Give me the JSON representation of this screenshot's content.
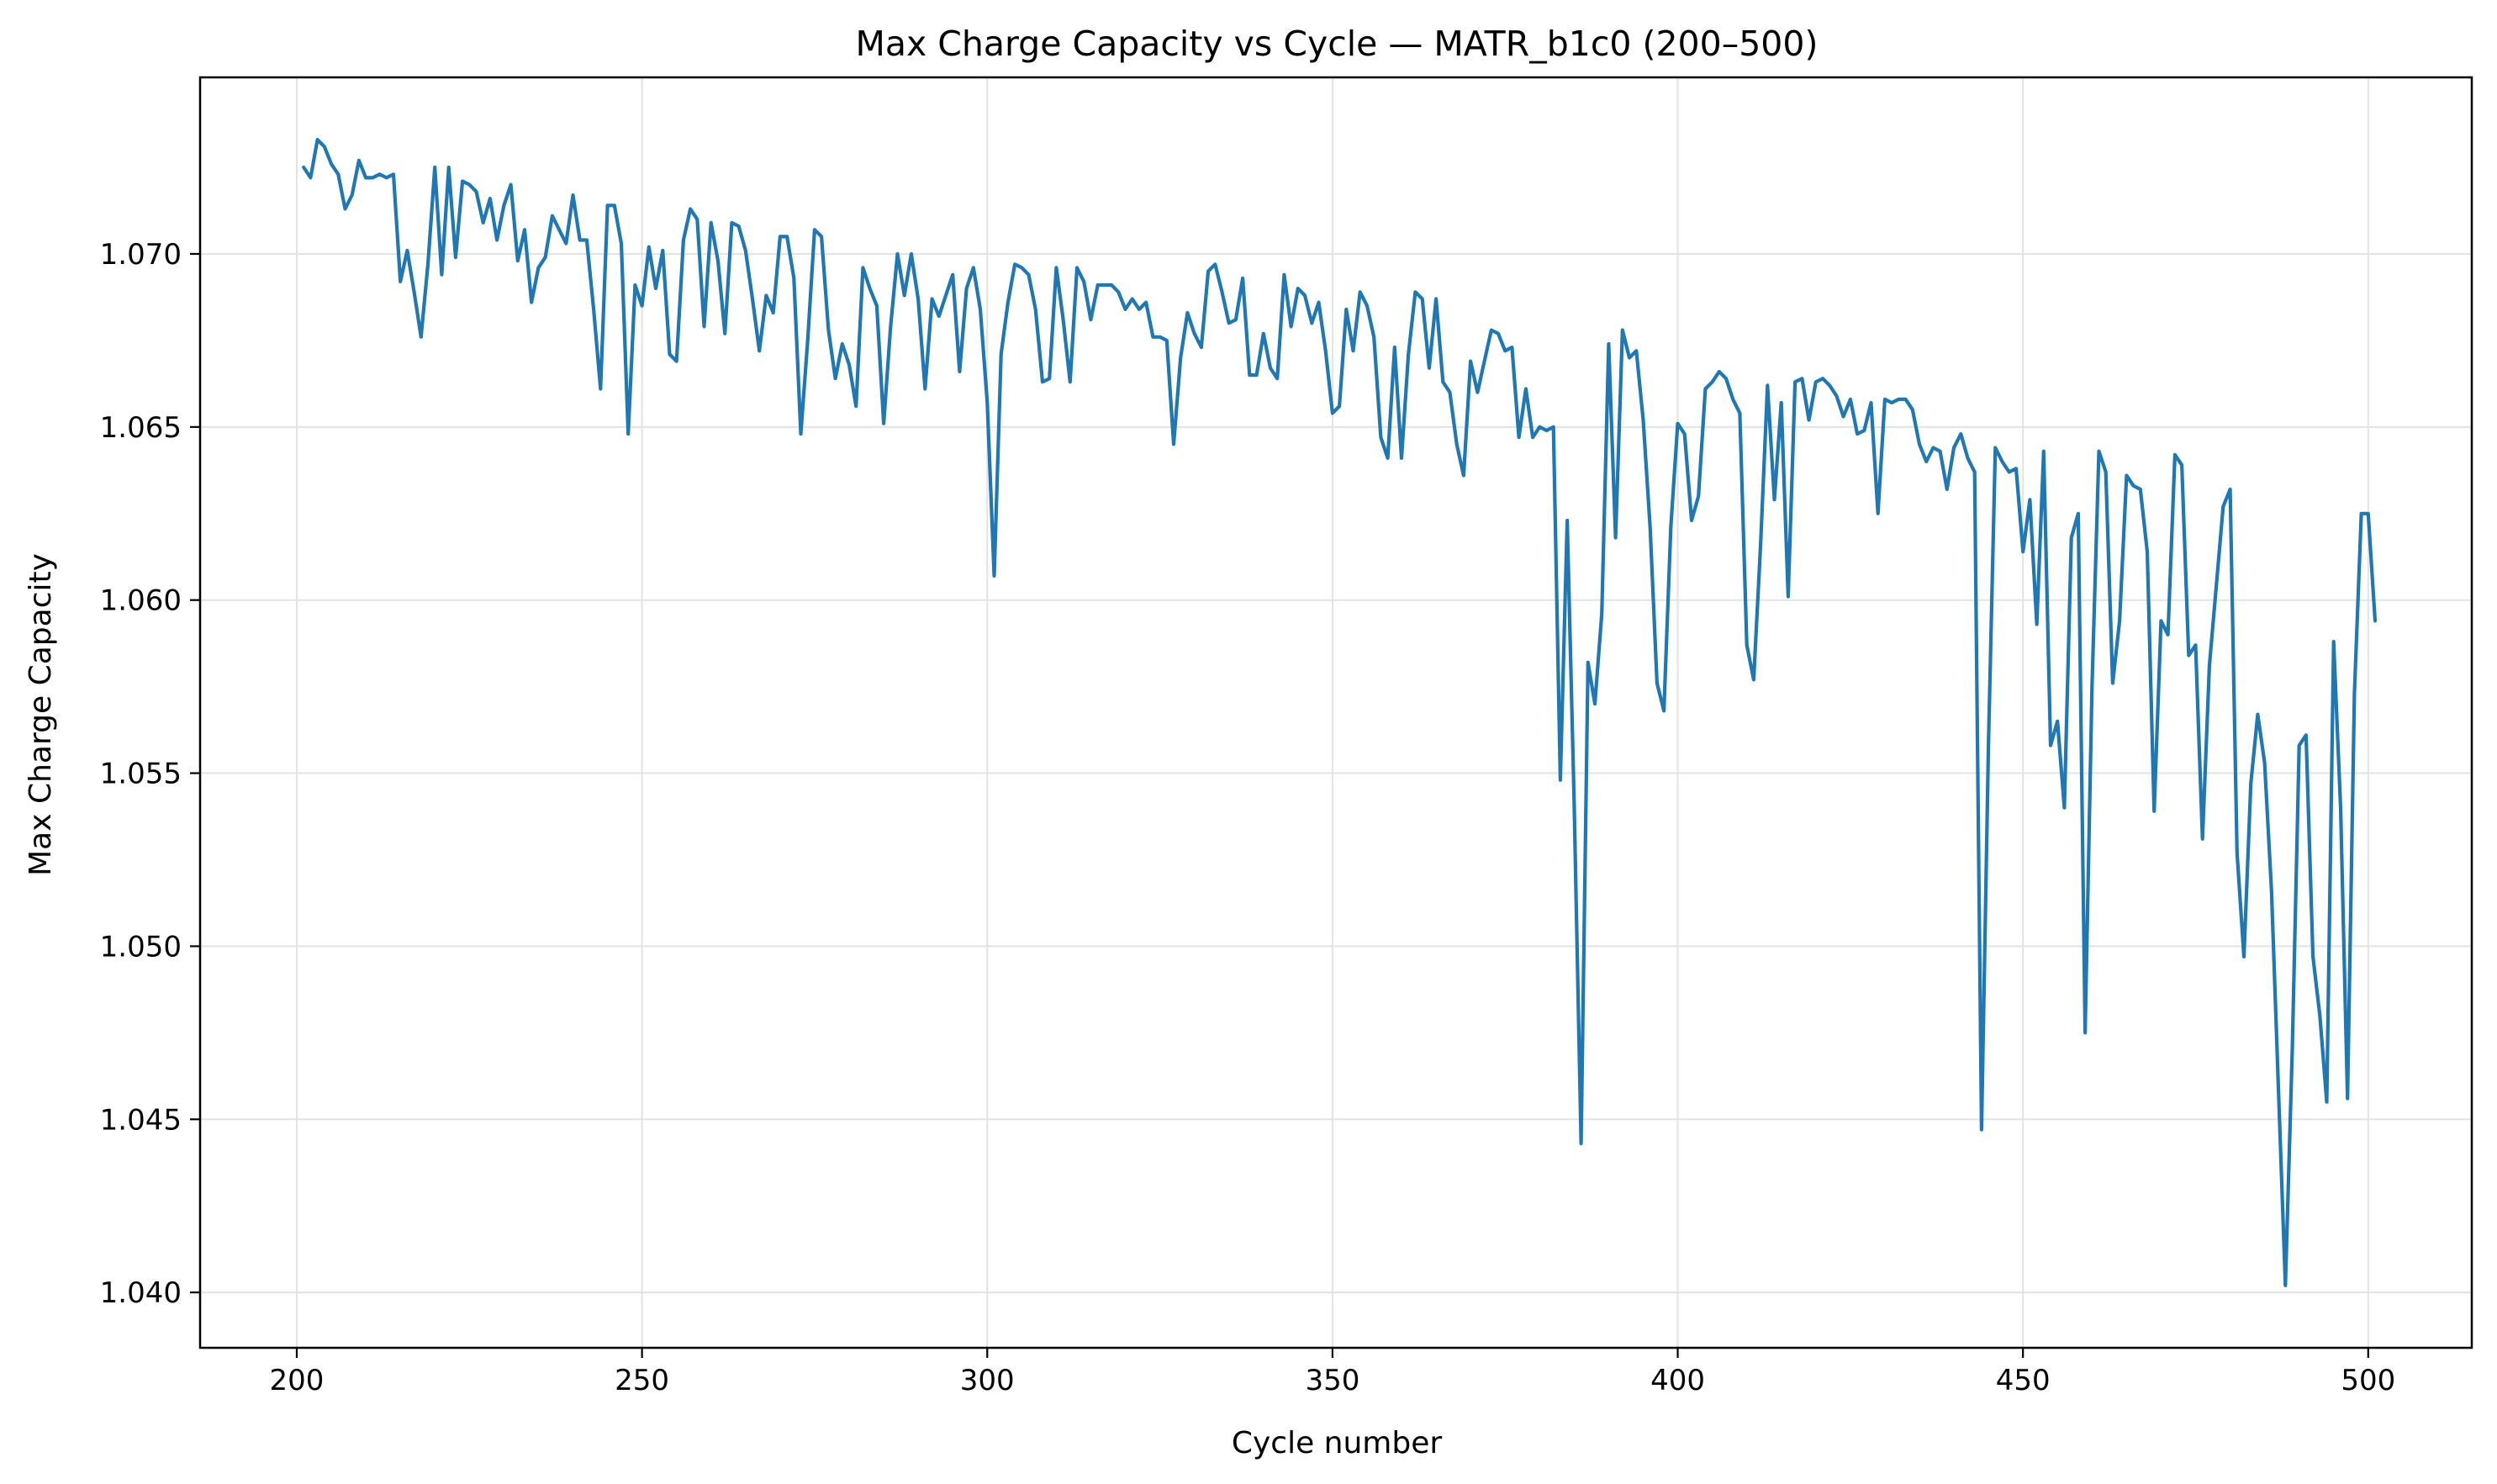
{
  "chart_data": {
    "type": "line",
    "title": "Max Charge Capacity vs Cycle — MATR_b1c0 (200–500)",
    "xlabel": "Cycle number",
    "ylabel": "Max Charge Capacity",
    "xlim": [
      186,
      515
    ],
    "ylim": [
      1.0384,
      1.0751
    ],
    "xticks": [
      200,
      250,
      300,
      350,
      400,
      450,
      500
    ],
    "xtick_labels": [
      "200",
      "250",
      "300",
      "350",
      "400",
      "450",
      "500"
    ],
    "yticks": [
      1.04,
      1.045,
      1.05,
      1.055,
      1.06,
      1.065,
      1.07
    ],
    "ytick_labels": [
      "1.040",
      "1.045",
      "1.050",
      "1.055",
      "1.060",
      "1.065",
      "1.070"
    ],
    "grid": true,
    "legend": "none",
    "line_color": "#1f77b4",
    "series": [
      {
        "x_start": 201,
        "x_step": 1,
        "values": [
          1.0725,
          1.0722,
          1.0733,
          1.0731,
          1.0726,
          1.0723,
          1.0713,
          1.0717,
          1.0727,
          1.0722,
          1.0722,
          1.0723,
          1.0722,
          1.0723,
          1.0692,
          1.0701,
          1.0689,
          1.0676,
          1.0697,
          1.0725,
          1.0694,
          1.0725,
          1.0699,
          1.0721,
          1.072,
          1.0718,
          1.0709,
          1.0716,
          1.0704,
          1.0714,
          1.072,
          1.0698,
          1.0707,
          1.0686,
          1.0696,
          1.0699,
          1.0711,
          1.0707,
          1.0703,
          1.0717,
          1.0704,
          1.0704,
          1.0684,
          1.0661,
          1.0714,
          1.0714,
          1.0703,
          1.0648,
          1.0691,
          1.0685,
          1.0702,
          1.069,
          1.0701,
          1.0671,
          1.0669,
          1.0704,
          1.0713,
          1.071,
          1.0679,
          1.0709,
          1.0698,
          1.0677,
          1.0709,
          1.0708,
          1.0701,
          1.0687,
          1.0672,
          1.0688,
          1.0683,
          1.0705,
          1.0705,
          1.0693,
          1.0648,
          1.0675,
          1.0707,
          1.0705,
          1.0678,
          1.0664,
          1.0674,
          1.0668,
          1.0656,
          1.0696,
          1.069,
          1.0685,
          1.0651,
          1.0679,
          1.07,
          1.0688,
          1.07,
          1.0687,
          1.0661,
          1.0687,
          1.0682,
          1.0688,
          1.0694,
          1.0666,
          1.069,
          1.0696,
          1.0684,
          1.0657,
          1.0607,
          1.0671,
          1.0686,
          1.0697,
          1.0696,
          1.0694,
          1.0684,
          1.0663,
          1.0664,
          1.0696,
          1.0681,
          1.0663,
          1.0696,
          1.0692,
          1.0681,
          1.0691,
          1.0691,
          1.0691,
          1.0689,
          1.0684,
          1.0687,
          1.0684,
          1.0686,
          1.0676,
          1.0676,
          1.0675,
          1.0645,
          1.067,
          1.0683,
          1.0677,
          1.0673,
          1.0695,
          1.0697,
          1.0689,
          1.068,
          1.0681,
          1.0693,
          1.0665,
          1.0665,
          1.0677,
          1.0667,
          1.0664,
          1.0694,
          1.0679,
          1.069,
          1.0688,
          1.068,
          1.0686,
          1.0672,
          1.0654,
          1.0656,
          1.0684,
          1.0672,
          1.0689,
          1.0685,
          1.0676,
          1.0647,
          1.0641,
          1.0673,
          1.0641,
          1.0671,
          1.0689,
          1.0687,
          1.0667,
          1.0687,
          1.0663,
          1.066,
          1.0645,
          1.0636,
          1.0669,
          1.066,
          1.0669,
          1.0678,
          1.0677,
          1.0672,
          1.0673,
          1.0647,
          1.0661,
          1.0647,
          1.065,
          1.0649,
          1.065,
          1.0548,
          1.0623,
          1.0542,
          1.0443,
          1.0582,
          1.057,
          1.0596,
          1.0674,
          1.0618,
          1.0678,
          1.067,
          1.0672,
          1.0652,
          1.0621,
          1.0576,
          1.0568,
          1.0621,
          1.0651,
          1.0648,
          1.0623,
          1.063,
          1.0661,
          1.0663,
          1.0666,
          1.0664,
          1.0658,
          1.0654,
          1.0587,
          1.0577,
          1.0616,
          1.0662,
          1.0629,
          1.0657,
          1.0601,
          1.0663,
          1.0664,
          1.0652,
          1.0663,
          1.0664,
          1.0662,
          1.0659,
          1.0653,
          1.0658,
          1.0648,
          1.0649,
          1.0657,
          1.0625,
          1.0658,
          1.0657,
          1.0658,
          1.0658,
          1.0655,
          1.0645,
          1.064,
          1.0644,
          1.0643,
          1.0632,
          1.0644,
          1.0648,
          1.0641,
          1.0637,
          1.0447,
          1.0558,
          1.0644,
          1.064,
          1.0637,
          1.0638,
          1.0614,
          1.0629,
          1.0593,
          1.0643,
          1.0558,
          1.0565,
          1.054,
          1.0618,
          1.0625,
          1.0475,
          1.0575,
          1.0643,
          1.0637,
          1.0576,
          1.0594,
          1.0636,
          1.0633,
          1.0632,
          1.0614,
          1.0539,
          1.0594,
          1.059,
          1.0642,
          1.0639,
          1.0584,
          1.0587,
          1.0531,
          1.0581,
          1.0604,
          1.0627,
          1.0632,
          1.0527,
          1.0497,
          1.0547,
          1.0567,
          1.0553,
          1.0516,
          1.0459,
          1.0402,
          1.047,
          1.0558,
          1.0561,
          1.0497,
          1.048,
          1.0455,
          1.0588,
          1.054,
          1.0456,
          1.0573,
          1.0625,
          1.0625,
          1.0594
        ]
      }
    ]
  }
}
